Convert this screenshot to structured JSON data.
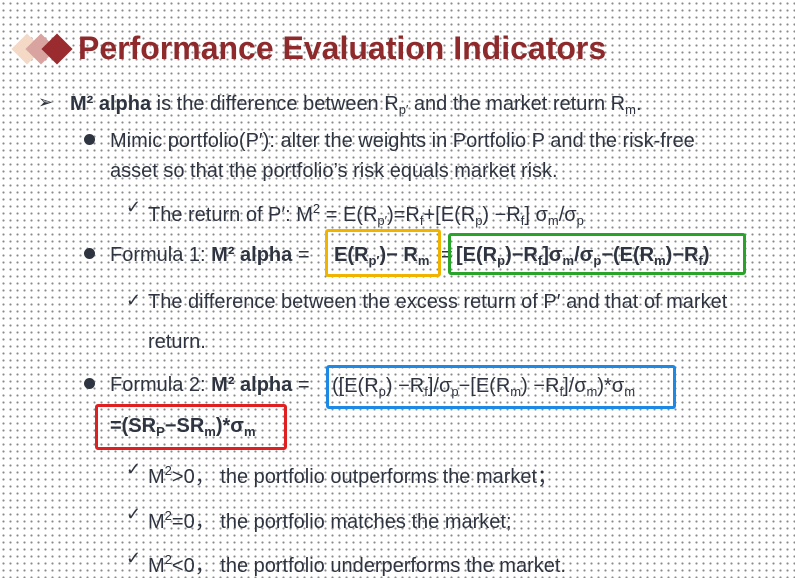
{
  "title": "Performance Evaluation Indicators",
  "intro": {
    "term": "M² alpha",
    "text_a": " is the difference between R",
    "sub_p": "p′",
    "text_b": " and the market return R",
    "sub_m": "m",
    "text_c": "."
  },
  "mimic": {
    "line1": "Mimic portfolio(P′): alter the weights in Portfolio P and the risk-free",
    "line2": "asset so that the portfolio’s risk equals market risk."
  },
  "return_line": {
    "lead": "The return of P′: M",
    "sup": "2",
    "eq": " = E(R",
    "sub_p1": "p′",
    "mid": ")=R",
    "sub_f1": "f",
    "mid2": "+[E(R",
    "sub_p2": "p",
    "mid3": ") −R",
    "sub_f2": "f",
    "mid4": "] σ",
    "sub_m": "m",
    "mid5": "/σ",
    "sub_p3": "p"
  },
  "formula1": {
    "label": "Formula 1: ",
    "term": "M² alpha",
    "eq": " = ",
    "yellow": "E(R",
    "yellow_sub": "p′",
    "yellow_b": ")− R",
    "yellow_sub2": "m",
    "sign": "=",
    "green_text": "[E(R",
    "g_sub_p": "p",
    "g_b": ")−R",
    "g_sub_f": "f",
    "g_c": "]σ",
    "g_sub_m": "m",
    "g_d": "/σ",
    "g_sub_p2": "p",
    "g_e": "−(E(R",
    "g_sub_m2": "m",
    "g_f": ")−R",
    "g_sub_f2": "f",
    "g_g": ")"
  },
  "diff": {
    "line1": "The difference between the excess return of P′ and that of market",
    "line2": "return."
  },
  "formula2": {
    "label": "Formula 2: ",
    "term": "M² alpha",
    "eq": " = ",
    "blue_a": "([E(R",
    "b_sub_p": "p",
    "blue_b": ") −R",
    "b_sub_f": "f",
    "blue_c": "]/σ",
    "b_sub_p2": "p",
    "blue_d": "−[E(R",
    "b_sub_m": "m",
    "blue_e": ") −R",
    "b_sub_f2": "f",
    "blue_f": "]/σ",
    "b_sub_m2": "m",
    "blue_g": ")*σ",
    "b_sub_m3": "m",
    "red_a": "=(SR",
    "r_sub_p": "P",
    "red_b": "−SR",
    "r_sub_m": "m",
    "red_c": ")*σ",
    "r_sub_m2": "m"
  },
  "conditions": [
    {
      "lead": "M",
      "sup": "2",
      "rest": ">0， the portfolio outperforms the market；"
    },
    {
      "lead": "M",
      "sup": "2",
      "rest": "=0， the portfolio matches the market;"
    },
    {
      "lead": "M",
      "sup": "2",
      "rest": "<0， the portfolio underperforms the market."
    }
  ],
  "icons": {
    "title_bullet": "stacked-diamonds-icon",
    "arrow": "arrow-bullet-icon",
    "dot": "round-bullet-icon",
    "check": "checkmark-icon"
  },
  "colors": {
    "title": "#8e2a2c",
    "yellow_box": "#f0b400",
    "green_box": "#2aa32a",
    "blue_box": "#1e88e5",
    "red_box": "#e02020"
  }
}
